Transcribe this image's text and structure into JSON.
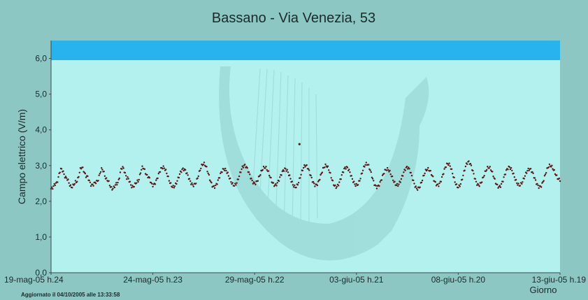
{
  "chart_data": {
    "type": "scatter",
    "title": "Bassano - Via Venezia, 53",
    "xlabel": "Giorno",
    "ylabel": "Campo elettrico (V/m)",
    "footer": "Aggiornato il 04/10/2005 alle 13:33:58",
    "ylim": [
      0,
      6.5
    ],
    "xlim": [
      0,
      25
    ],
    "yticks": [
      "0,0",
      "1,0",
      "2,0",
      "3,0",
      "4,0",
      "5,0",
      "6,0"
    ],
    "yticks_values": [
      0,
      1,
      2,
      3,
      4,
      5,
      6
    ],
    "xticks": [
      "19-mag-05 h.24",
      "24-mag-05 h.23",
      "29-mag-05 h.22",
      "03-giu-05 h.21",
      "08-giu-05 h.20",
      "13-giu-05 h.19"
    ],
    "xticks_values": [
      0,
      5,
      10,
      15,
      20,
      25
    ],
    "threshold_band": {
      "from": 6.0,
      "to": 6.5,
      "color": "#29b3ee"
    },
    "grid": false,
    "colors": {
      "background": "#8cc7c4",
      "plot_area": "#b3f1ef",
      "points": "#5a1616",
      "watermark": "#8fcfcc"
    },
    "series": [
      {
        "daily_cycle": {
          "days": 25,
          "min_value": 2.3,
          "max_value": 2.95,
          "mean_value": 2.6
        },
        "values": [
          [
            0,
            2.35
          ],
          [
            0.25,
            2.5
          ],
          [
            0.5,
            2.9
          ],
          [
            0.75,
            2.65
          ],
          [
            1,
            2.4
          ],
          [
            1.25,
            2.55
          ],
          [
            1.5,
            2.95
          ],
          [
            1.75,
            2.7
          ],
          [
            2,
            2.45
          ],
          [
            2.25,
            2.55
          ],
          [
            2.5,
            2.9
          ],
          [
            2.75,
            2.6
          ],
          [
            3,
            2.35
          ],
          [
            3.25,
            2.5
          ],
          [
            3.5,
            2.95
          ],
          [
            3.75,
            2.65
          ],
          [
            4,
            2.4
          ],
          [
            4.25,
            2.55
          ],
          [
            4.5,
            2.95
          ],
          [
            4.75,
            2.7
          ],
          [
            5,
            2.45
          ],
          [
            5.5,
            2.95
          ],
          [
            6,
            2.4
          ],
          [
            6.5,
            2.9
          ],
          [
            7,
            2.45
          ],
          [
            7.5,
            3.05
          ],
          [
            8,
            2.4
          ],
          [
            8.5,
            2.9
          ],
          [
            9,
            2.45
          ],
          [
            9.5,
            3.0
          ],
          [
            10,
            2.5
          ],
          [
            10.5,
            2.95
          ],
          [
            11,
            2.45
          ],
          [
            11.5,
            2.9
          ],
          [
            12,
            2.4
          ],
          [
            12.5,
            3.0
          ],
          [
            12.2,
            3.6
          ],
          [
            13,
            2.45
          ],
          [
            13.5,
            3.0
          ],
          [
            14,
            2.4
          ],
          [
            14.5,
            2.95
          ],
          [
            15,
            2.45
          ],
          [
            15.5,
            3.05
          ],
          [
            16,
            2.4
          ],
          [
            16.5,
            2.9
          ],
          [
            17,
            2.45
          ],
          [
            17.5,
            2.95
          ],
          [
            18,
            2.35
          ],
          [
            18.5,
            2.9
          ],
          [
            19,
            2.45
          ],
          [
            19.5,
            3.05
          ],
          [
            20,
            2.4
          ],
          [
            20.5,
            3.1
          ],
          [
            21,
            2.45
          ],
          [
            21.5,
            2.95
          ],
          [
            22,
            2.4
          ],
          [
            22.5,
            2.95
          ],
          [
            23,
            2.45
          ],
          [
            23.5,
            2.9
          ],
          [
            24,
            2.4
          ],
          [
            24.5,
            3.0
          ],
          [
            25,
            2.6
          ]
        ]
      }
    ]
  }
}
